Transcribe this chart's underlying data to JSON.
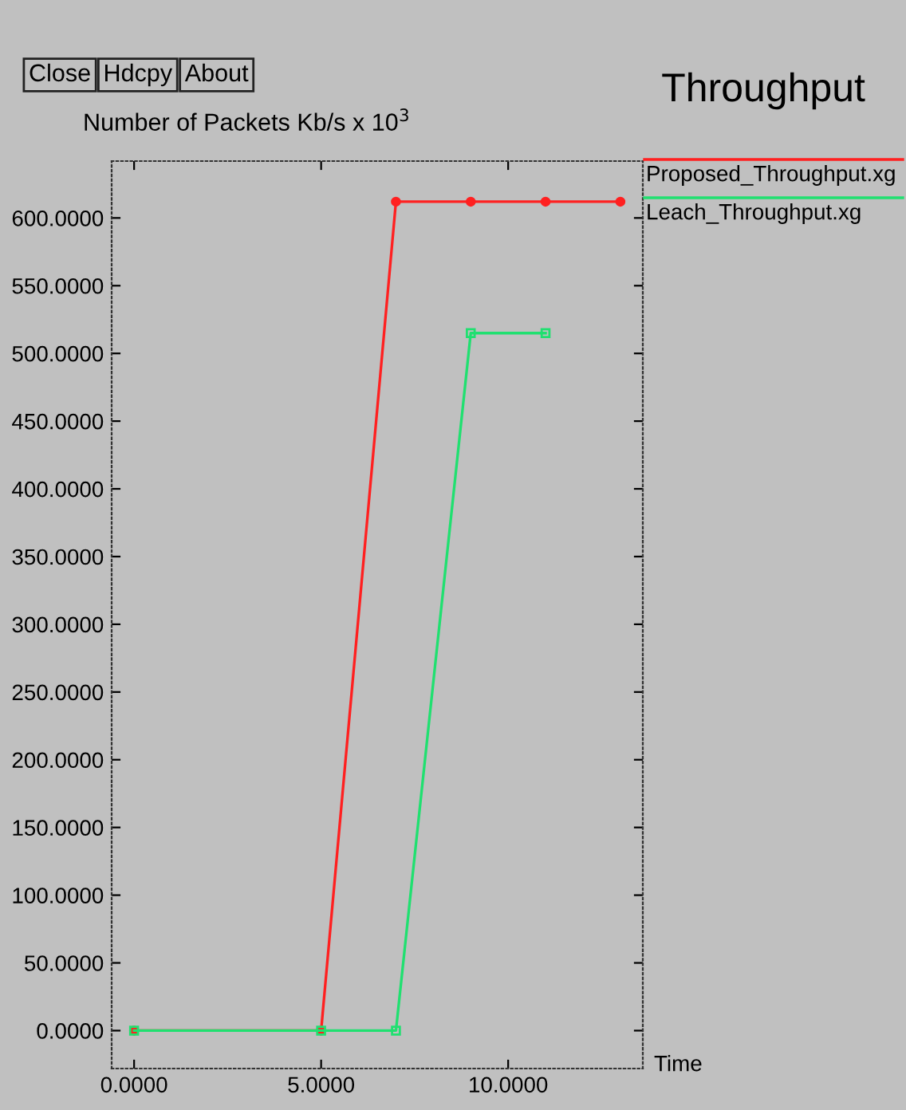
{
  "chart_data": {
    "type": "line",
    "title": "Throughput",
    "ylabel": "Number of Packets Kb/s x 10$^{3}$",
    "xlabel": "Time",
    "annotations": [
      "Close",
      "Hdcpy",
      "About"
    ],
    "series": [
      {
        "name": "Proposed_Throughput.xg",
        "color": "#ff2020",
        "marker": "circle",
        "x": [
          0,
          5,
          7,
          9,
          11,
          13
        ],
        "values": [
          0,
          0,
          612,
          612,
          612,
          612
        ]
      },
      {
        "name": "Leach_Throughput.xg",
        "color": "#20e070",
        "marker": "square",
        "x": [
          0,
          5,
          7,
          9,
          11
        ],
        "values": [
          0,
          0,
          0,
          515,
          515
        ]
      }
    ],
    "xlim": [
      -0.6,
      13.6
    ],
    "ylim": [
      -28,
      642
    ],
    "xticks": [
      {
        "value": 0,
        "label": "0.0000"
      },
      {
        "value": 5,
        "label": "5.0000"
      },
      {
        "value": 10,
        "label": "10.0000"
      }
    ],
    "yticks": [
      {
        "value": 0,
        "label": "0.0000"
      },
      {
        "value": 50,
        "label": "50.0000"
      },
      {
        "value": 100,
        "label": "100.0000"
      },
      {
        "value": 150,
        "label": "150.0000"
      },
      {
        "value": 200,
        "label": "200.0000"
      },
      {
        "value": 250,
        "label": "250.0000"
      },
      {
        "value": 300,
        "label": "300.0000"
      },
      {
        "value": 350,
        "label": "350.0000"
      },
      {
        "value": 400,
        "label": "400.0000"
      },
      {
        "value": 450,
        "label": "450.0000"
      },
      {
        "value": 500,
        "label": "500.0000"
      },
      {
        "value": 550,
        "label": "550.0000"
      },
      {
        "value": 600,
        "label": "600.0000"
      }
    ],
    "grid": false,
    "legend": "top right"
  }
}
